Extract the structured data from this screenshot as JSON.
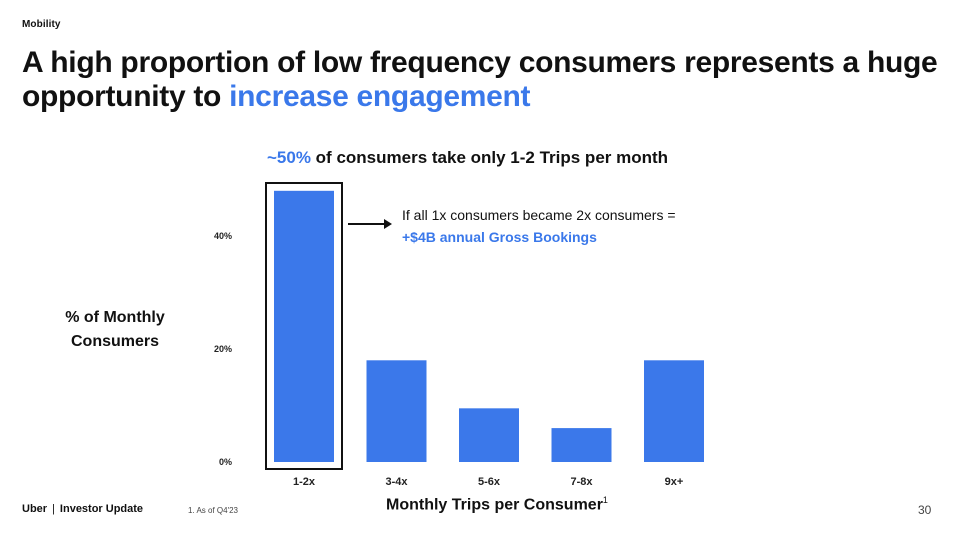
{
  "section": "Mobility",
  "headline": {
    "part1": "A high proportion of low frequency consumers represents a huge opportunity to ",
    "accent": "increase engagement"
  },
  "colors": {
    "accent": "#3a78ea",
    "bar": "#3b78ea",
    "text": "#111111"
  },
  "chart_data": {
    "type": "bar",
    "title_accent": "~50%",
    "title_rest": " of consumers take only 1-2 Trips per month",
    "xlabel": "Monthly Trips per Consumer",
    "xlabel_sup": "1",
    "ylabel": "% of Monthly Consumers",
    "categories": [
      "1-2x",
      "3-4x",
      "5-6x",
      "7-8x",
      "9x+"
    ],
    "values": [
      48,
      18,
      9.5,
      6,
      18
    ],
    "yticks": [
      0,
      20,
      40
    ],
    "ytick_labels": [
      "0%",
      "20%",
      "40%"
    ],
    "ylim": [
      0,
      50
    ],
    "highlight_index": 0,
    "annotation": {
      "line1": "If all 1x consumers became 2x consumers =",
      "line2": "+$4B annual Gross Bookings"
    }
  },
  "footer": {
    "brand": "Uber",
    "separator": "|",
    "doc": "Investor Update",
    "footnote": "1.  As of Q4'23",
    "page": "30"
  }
}
